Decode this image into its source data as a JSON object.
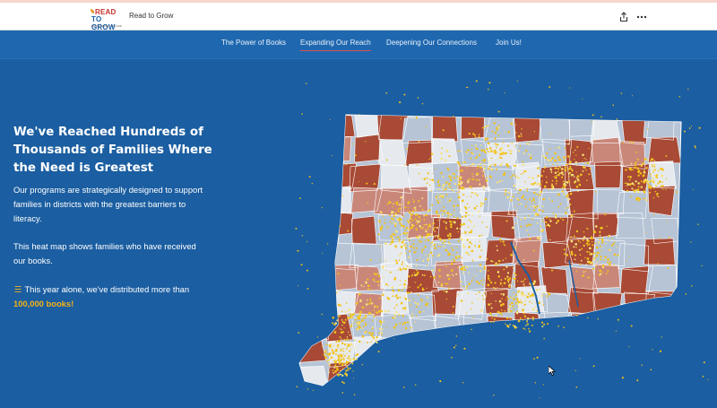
{
  "header": {
    "logo_line1": "READ",
    "logo_line2": "TO GROW",
    "logo_tagline": "building literacy from birth",
    "app_title": "Read to Grow",
    "share_icon": "share-icon",
    "more_icon": "more-icon"
  },
  "nav": {
    "items": [
      "The Power of Books",
      "Expanding Our Reach",
      "Deepening Our Connections",
      "Join Us!"
    ],
    "active_index": 1
  },
  "hero": {
    "title": "We've Reached Hundreds of Thousands of Families Where the Need is Greatest",
    "para1": "Our programs are strategically designed to support families in districts with the greatest barriers to literacy.",
    "para2": "This heat map shows families who have received our books.",
    "para3": "This year alone, we've distributed more than",
    "para3_highlight": "100,000 books!",
    "books_icon": "books-icon"
  },
  "map": {
    "name": "heat-map-connecticut",
    "colors": {
      "high_need": "#a84a35",
      "mid_need": "#c9877a",
      "low_need": "#b6c4d6",
      "lowest_need": "#e6e9ee",
      "dots": "#f2c21b"
    }
  },
  "colors": {
    "background": "#1b5ea1",
    "nav_bg": "#1f68b0",
    "accent": "#f2b21b",
    "active_underline": "#d9534f"
  }
}
